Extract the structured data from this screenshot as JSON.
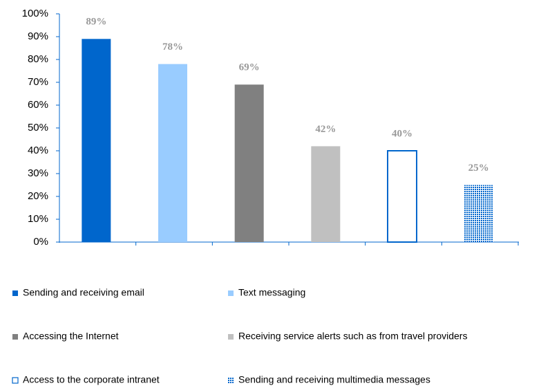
{
  "chart_data": {
    "type": "bar",
    "categories": [
      "Sending and receiving email",
      "Text messaging",
      "Accessing the Internet",
      "Receiving service alerts such as from travel providers",
      "Access to the corporate intranet",
      "Sending and receiving multimedia messages"
    ],
    "values": [
      89,
      78,
      69,
      42,
      40,
      25
    ],
    "value_labels": [
      "89%",
      "78%",
      "69%",
      "42%",
      "40%",
      "25%"
    ],
    "colors": [
      "#0066cc",
      "#99ccff",
      "#808080",
      "#c0c0c0",
      "#0066cc",
      "#0066cc"
    ],
    "fills": [
      "solid",
      "solid",
      "solid",
      "solid",
      "outline",
      "hatch"
    ],
    "ylim": [
      0,
      100
    ],
    "yticks": [
      {
        "value": 0,
        "label": "0%"
      },
      {
        "value": 10,
        "label": "10%"
      },
      {
        "value": 20,
        "label": "20%"
      },
      {
        "value": 30,
        "label": "30%"
      },
      {
        "value": 40,
        "label": "40%"
      },
      {
        "value": 50,
        "label": "50%"
      },
      {
        "value": 60,
        "label": "60%"
      },
      {
        "value": 70,
        "label": "70%"
      },
      {
        "value": 80,
        "label": "80%"
      },
      {
        "value": 90,
        "label": "90%"
      },
      {
        "value": 100,
        "label": "100%"
      }
    ],
    "legend": "bottom"
  }
}
